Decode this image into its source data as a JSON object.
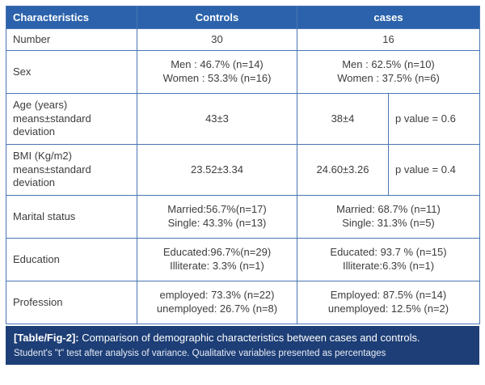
{
  "header": {
    "characteristics": "Characteristics",
    "controls": "Controls",
    "cases": "cases"
  },
  "rows": {
    "number": {
      "label": "Number",
      "controls": "30",
      "cases": "16"
    },
    "sex": {
      "label": "Sex",
      "controls": "Men : 46.7% (n=14)\nWomen : 53.3% (n=16)",
      "cases": "Men : 62.5% (n=10)\nWomen : 37.5% (n=6)"
    },
    "age": {
      "label": "Age (years)\nmeans±standard\ndeviation",
      "controls": "43±3",
      "cases": "38±4",
      "p": "p value = 0.6"
    },
    "bmi": {
      "label": "BMI (Kg/m2)\nmeans±standard\ndeviation",
      "controls": "23.52±3.34",
      "cases": "24.60±3.26",
      "p": "p value = 0.4"
    },
    "marital": {
      "label": "Marital status",
      "controls": "Married:56.7%(n=17)\nSingle: 43.3% (n=13)",
      "cases": "Married: 68.7% (n=11)\nSingle: 31.3% (n=5)"
    },
    "education": {
      "label": "Education",
      "controls": "Educated:96.7%(n=29)\nIlliterate: 3.3% (n=1)",
      "cases": "Educated: 93.7 % (n=15)\nIlliterate:6.3% (n=1)"
    },
    "profession": {
      "label": "Profession",
      "controls": "employed: 73.3% (n=22)\nunemployed: 26.7% (n=8)",
      "cases": "Employed: 87.5% (n=14)\nunemployed: 12.5% (n=2)"
    }
  },
  "footer": {
    "tag": "[Table/Fig-2]:",
    "caption": " Comparison of demographic characteristics between cases and controls.",
    "note": "Student's \"t\" test after analysis of variance. Qualitative variables presented as percentages"
  },
  "colors": {
    "header_bg": "#2b62ab",
    "border": "#4a76b4",
    "footer_bg": "#1d3e76"
  }
}
